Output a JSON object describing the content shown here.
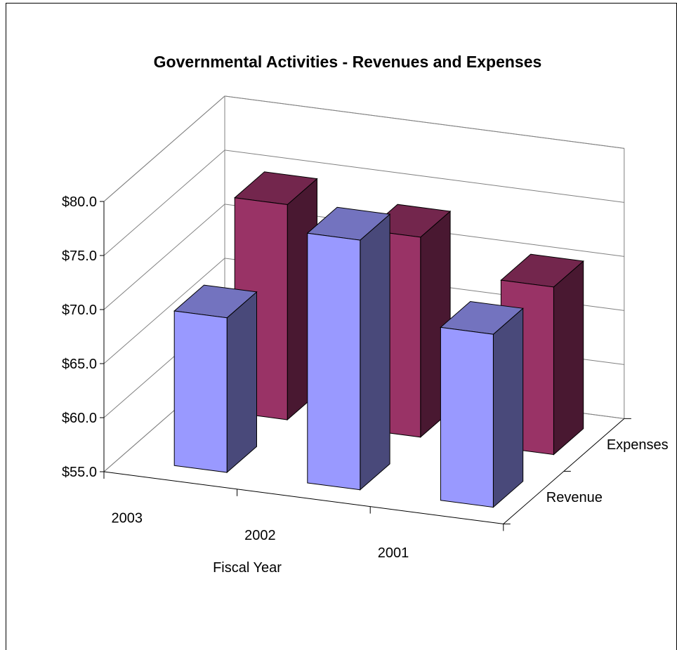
{
  "chart_data": {
    "type": "bar",
    "subtype": "3d-column",
    "title": "Governmental Activities - Revenues and Expenses",
    "xlabel": "Fiscal Year",
    "ylabel": "",
    "categories": [
      "2003",
      "2002",
      "2001"
    ],
    "series": [
      {
        "name": "Revenue",
        "values": [
          69.3,
          78.1,
          71.0
        ],
        "color": "#9999FF"
      },
      {
        "name": "Expenses",
        "values": [
          74.9,
          73.5,
          70.5
        ],
        "color": "#993366"
      }
    ],
    "ylim": [
      55.0,
      80.0
    ],
    "yticks": [
      "$55.0",
      "$60.0",
      "$65.0",
      "$70.0",
      "$75.0",
      "$80.0"
    ],
    "ytick_values": [
      55,
      60,
      65,
      70,
      75,
      80
    ],
    "grid": true,
    "legend": "depth-axis"
  }
}
